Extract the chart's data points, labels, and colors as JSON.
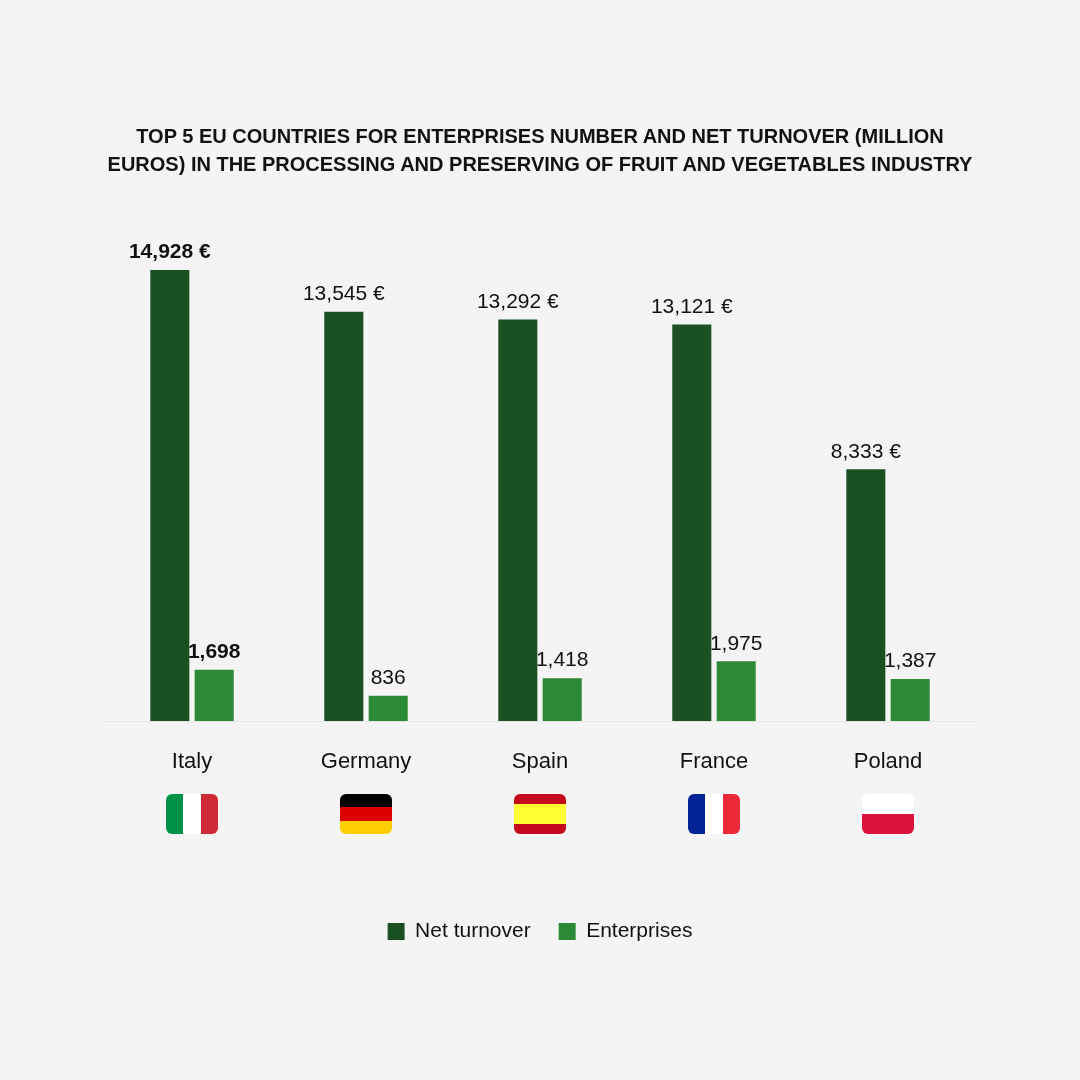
{
  "chart_data": {
    "type": "bar",
    "title": "TOP 5 EU COUNTRIES FOR ENTERPRISES NUMBER AND NET TURNOVER (MILLION EUROS) IN THE PROCESSING AND PRESERVING OF FRUIT AND VEGETABLES INDUSTRY",
    "categories": [
      "Italy",
      "Germany",
      "Spain",
      "France",
      "Poland"
    ],
    "series": [
      {
        "name": "Net turnover",
        "color": "#1b5022",
        "values": [
          14928,
          13545,
          13292,
          13121,
          8333
        ],
        "value_labels": [
          "14,928 €",
          "13,545 €",
          "13,292 €",
          "13,121 €",
          "8,333 €"
        ]
      },
      {
        "name": "Enterprises",
        "color": "#2c8a37",
        "values": [
          1698,
          836,
          1418,
          1975,
          1387
        ],
        "value_labels": [
          "1,698",
          "836",
          "1,418",
          "1,975",
          "1,387"
        ]
      }
    ],
    "legend": "bottom"
  }
}
